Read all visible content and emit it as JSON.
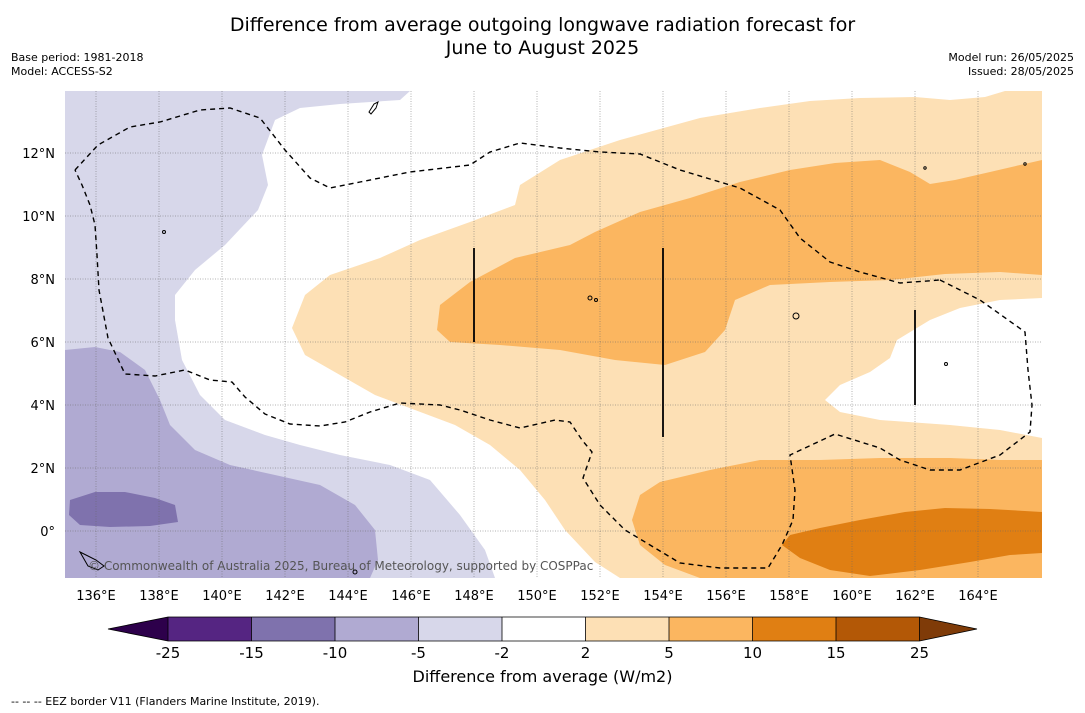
{
  "header": {
    "title_line1": "Difference from average outgoing longwave radiation forecast for",
    "title_line2": "June to August 2025",
    "base_period": "Base period: 1981-2018",
    "model": "Model: ACCESS-S2",
    "model_run": "Model run: 26/05/2025",
    "issued": "Issued: 28/05/2025"
  },
  "map": {
    "lon_ticks": [
      "136°E",
      "138°E",
      "140°E",
      "142°E",
      "144°E",
      "146°E",
      "148°E",
      "150°E",
      "152°E",
      "154°E",
      "156°E",
      "158°E",
      "160°E",
      "162°E",
      "164°E"
    ],
    "lat_ticks": [
      "12°N",
      "10°N",
      "8°N",
      "6°N",
      "4°N",
      "2°N",
      "0°"
    ],
    "copyright": "© Commonwealth of Australia 2025, Bureau of Meteorology, supported by COSPPac",
    "colors": {
      "minus15": "#7f72ad",
      "minus10": "#b0aad2",
      "minus5": "#d7d7ea",
      "plus2": "#fde0b5",
      "plus5": "#fbb660",
      "plus10": "#e07f13"
    }
  },
  "colorbar": {
    "labels": [
      "-25",
      "-15",
      "-10",
      "-5",
      "-2",
      "2",
      "5",
      "10",
      "15",
      "25"
    ],
    "colors": [
      "#552582",
      "#7f72ad",
      "#b0aad2",
      "#d7d7ea",
      "#ffffff",
      "#fde0b5",
      "#fbb660",
      "#e07f13",
      "#b35806"
    ],
    "under_color": "#2d004b",
    "over_color": "#7f3b08",
    "label": "Difference from average (W/m2)"
  },
  "footer": {
    "eez_note": "--  --  -- EEZ border V11 (Flanders Marine Institute, 2019)."
  }
}
